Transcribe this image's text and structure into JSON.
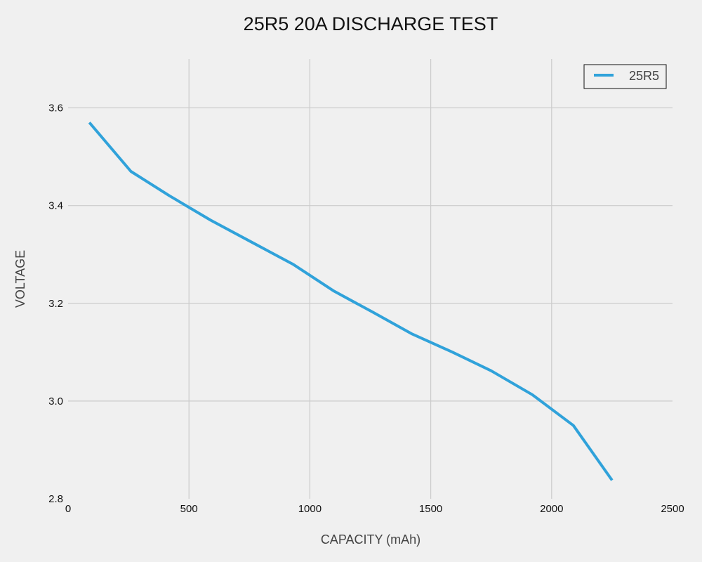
{
  "chart_data": {
    "type": "line",
    "title": "25R5 20A DISCHARGE TEST",
    "xlabel": "CAPACITY (mAh)",
    "ylabel": "VOLTAGE",
    "xlim": [
      0,
      2500
    ],
    "ylim": [
      2.8,
      3.7
    ],
    "xticks": [
      0,
      500,
      1000,
      1500,
      2000,
      2500
    ],
    "yticks": [
      2.8,
      3.0,
      3.2,
      3.4,
      3.6
    ],
    "xtick_labels": [
      "0",
      "500",
      "1000",
      "1500",
      "2000",
      "2500"
    ],
    "ytick_labels": [
      "2.8",
      "3.0",
      "3.2",
      "3.4",
      "3.6"
    ],
    "grid": true,
    "legend_position": "top-right",
    "series": [
      {
        "name": "25R5",
        "color": "#30a2da",
        "x": [
          88,
          260,
          420,
          590,
          760,
          930,
          1100,
          1260,
          1420,
          1590,
          1750,
          1920,
          2090,
          2250
        ],
        "y": [
          3.57,
          3.47,
          3.42,
          3.37,
          3.325,
          3.28,
          3.225,
          3.182,
          3.138,
          3.1,
          3.062,
          3.013,
          2.95,
          2.838
        ]
      }
    ]
  }
}
